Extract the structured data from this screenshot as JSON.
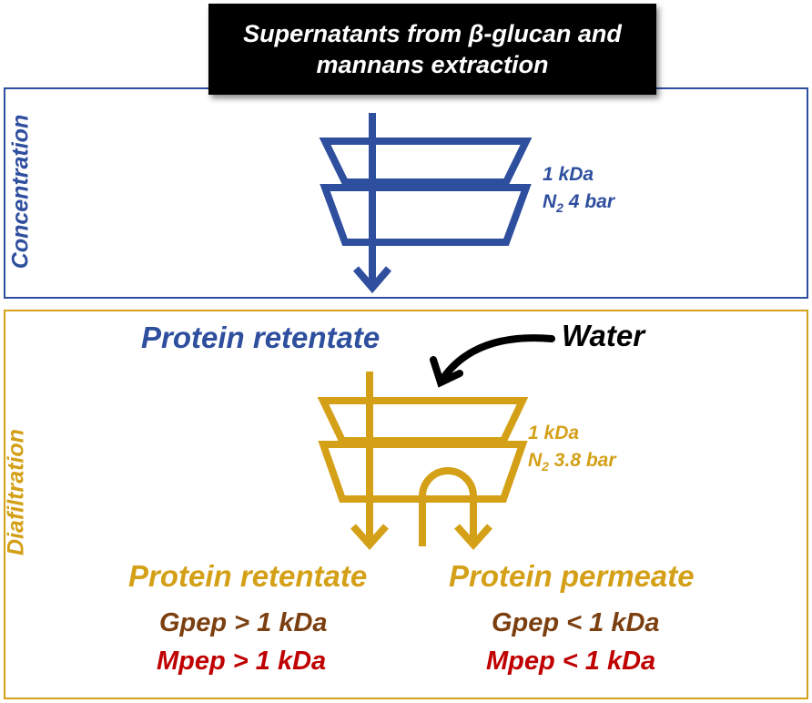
{
  "title": {
    "line1": "Supernatants from β-glucan and",
    "line2": "mannans extraction"
  },
  "concentration": {
    "label": "Concentration",
    "param_line1": "1 kDa",
    "param_n": "N",
    "param_sub": "2",
    "param_rest": " 4 bar"
  },
  "diafiltration": {
    "label": "Diafiltration",
    "param_line1": "1 kDa",
    "param_n": "N",
    "param_sub": "2",
    "param_rest": " 3.8 bar",
    "input_label": "Water",
    "retentate_in": "Protein retentate",
    "retentate_out": {
      "title": "Protein retentate",
      "gpep": "Gpep > 1 kDa",
      "mpep": "Mpep > 1 kDa"
    },
    "permeate_out": {
      "title": "Protein permeate",
      "gpep": "Gpep < 1 kDa",
      "mpep": "Mpep < 1 kDa"
    }
  },
  "colors": {
    "concentration": "#2E4E9E",
    "diafiltration": "#D4A017",
    "gpep": "#7B3F10",
    "mpep": "#C00000"
  }
}
